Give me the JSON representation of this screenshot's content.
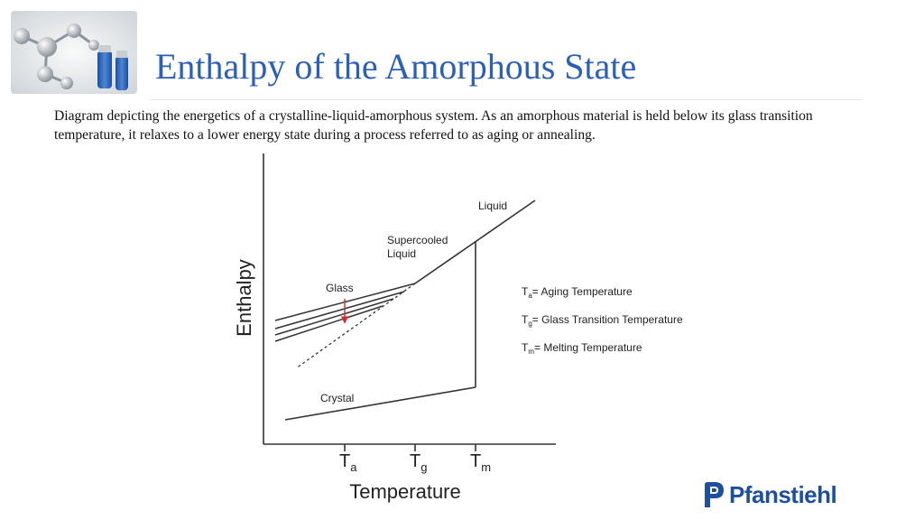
{
  "slide": {
    "title": "Enthalpy of the Amorphous State",
    "description": "Diagram depicting the energetics of a crystalline-liquid-amorphous system. As an amorphous material is held below its glass transition temperature, it relaxes to a lower energy state during a process referred to as aging or annealing."
  },
  "diagram": {
    "y_axis_label": "Enthalpy",
    "x_axis_label": "Temperature",
    "region_labels": {
      "liquid": "Liquid",
      "supercooled_liquid_line1": "Supercooled",
      "supercooled_liquid_line2": "Liquid",
      "glass": "Glass",
      "crystal": "Crystal"
    },
    "ticks": [
      {
        "main": "T",
        "sub": "a"
      },
      {
        "main": "T",
        "sub": "g"
      },
      {
        "main": "T",
        "sub": "m"
      }
    ],
    "legend": [
      {
        "main": "T",
        "sub": "a",
        "text": "= Aging Temperature"
      },
      {
        "main": "T",
        "sub": "g",
        "text": "= Glass Transition Temperature"
      },
      {
        "main": "T",
        "sub": "m",
        "text": "= Melting Temperature"
      }
    ],
    "arrow_color": "#e0262a",
    "line_color": "#333333"
  },
  "logo": {
    "text": "Pfanstiehl",
    "color": "#1d4f9e"
  }
}
